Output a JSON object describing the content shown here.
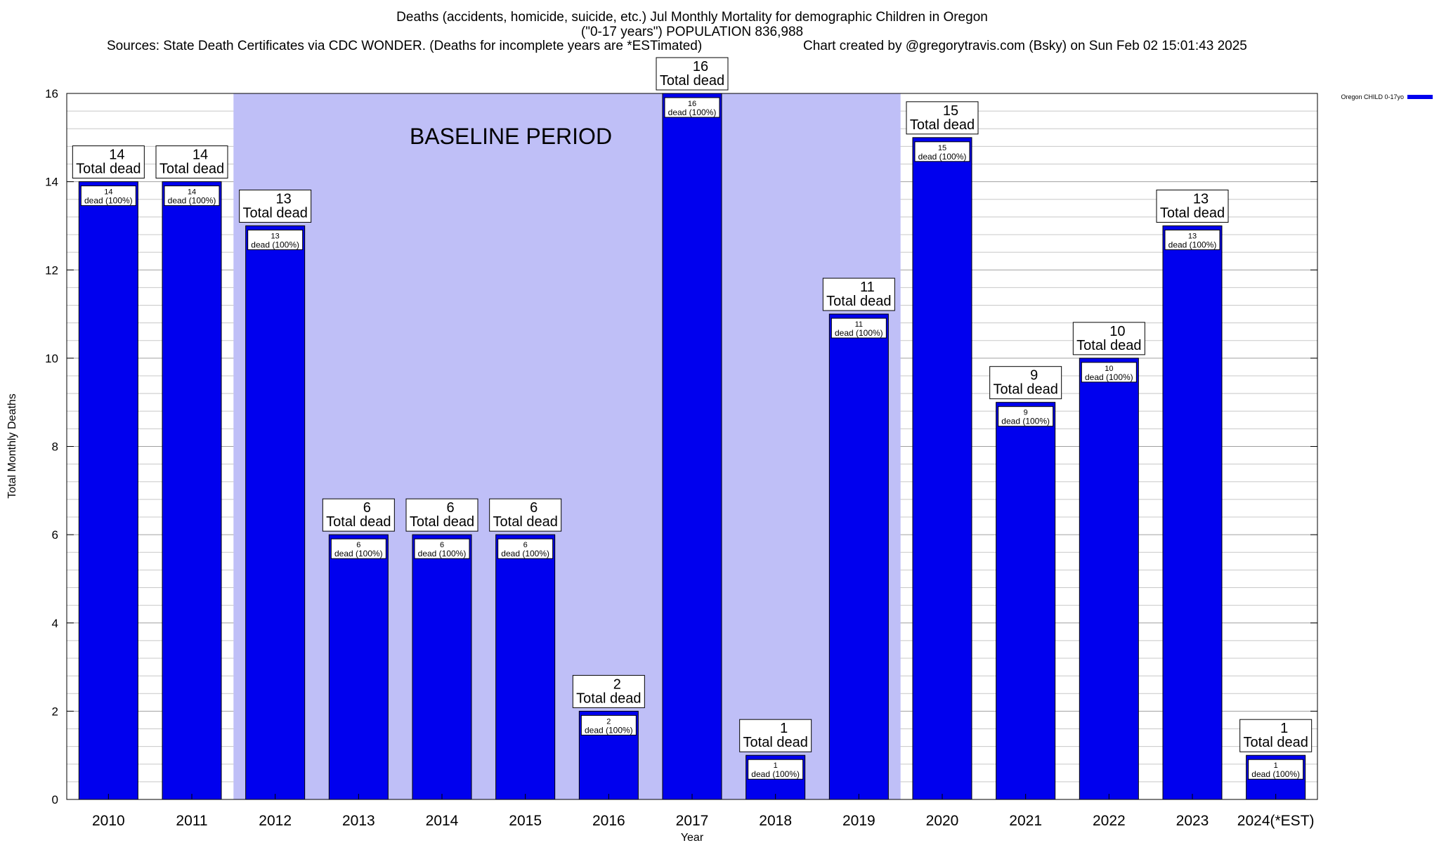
{
  "chart_data": {
    "type": "bar",
    "title": "Deaths (accidents, homicide, suicide, etc.) Jul Monthly Mortality for demographic Children in Oregon",
    "subtitle": "(\"0-17 years\") POPULATION 836,988",
    "sources": "Sources: State Death Certificates via CDC WONDER. (Deaths for incomplete years are *ESTimated)",
    "credit": "Chart created by @gregorytravis.com (Bsky) on Sun Feb 02 15:01:43 2025",
    "xlabel": "Year",
    "ylabel": "Total Monthly Deaths",
    "ylim": [
      0,
      16
    ],
    "yticks": [
      0,
      2,
      4,
      6,
      8,
      10,
      12,
      14,
      16
    ],
    "grid": true,
    "legend_position": "top-right",
    "series": [
      {
        "name": "Oregon CHILD 0-17yo",
        "color": "#0000ee",
        "values": [
          14,
          14,
          13,
          6,
          6,
          6,
          2,
          16,
          1,
          11,
          15,
          9,
          10,
          13,
          1
        ]
      }
    ],
    "categories": [
      "2010",
      "2011",
      "2012",
      "2013",
      "2014",
      "2015",
      "2016",
      "2017",
      "2018",
      "2019",
      "2020",
      "2021",
      "2022",
      "2023",
      "2024(*EST)"
    ],
    "total_label": "Total dead",
    "inner_label": "dead (100%)",
    "baseline": {
      "label": "BASELINE PERIOD",
      "from": "2012",
      "to": "2019",
      "color": "#bfbff7"
    }
  }
}
